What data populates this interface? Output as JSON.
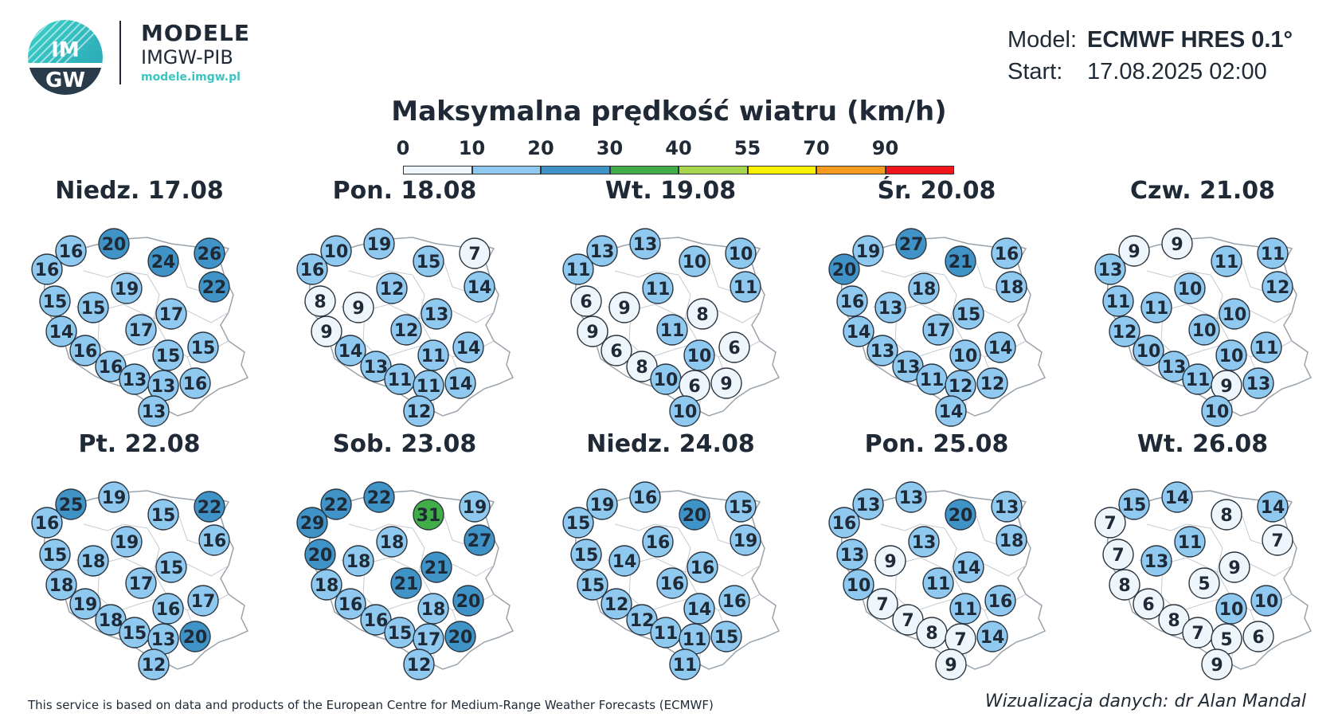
{
  "brand": {
    "logo_text_top": "IM",
    "logo_text_bottom": "GW",
    "title": "MODELE",
    "subtitle": "IMGW-PIB",
    "url": "modele.imgw.pl"
  },
  "model_info": {
    "model_label": "Model:",
    "model_value": "ECMWF HRES 0.1°",
    "start_label": "Start:",
    "start_value": "17.08.2025 02:00"
  },
  "title": "Maksymalna prędkość wiatru (km/h)",
  "legend": {
    "ticks": [
      "0",
      "10",
      "20",
      "30",
      "40",
      "55",
      "70",
      "90"
    ],
    "colors": [
      "#eef6fc",
      "#8fc9ef",
      "#3f93c6",
      "#41ad49",
      "#a7d64c",
      "#f9f101",
      "#f79c1e",
      "#f0161c"
    ]
  },
  "day_titles": [
    "Niedz. 17.08",
    "Pon. 18.08",
    "Wt. 19.08",
    "Śr. 20.08",
    "Czw. 21.08",
    "Pt. 22.08",
    "Sob. 23.08",
    "Niedz. 24.08",
    "Pon. 25.08",
    "Wt. 26.08"
  ],
  "map_values": [
    [
      16,
      20,
      24,
      26,
      16,
      22,
      19,
      15,
      15,
      17,
      14,
      17,
      15,
      16,
      15,
      16,
      13,
      13,
      16,
      13
    ],
    [
      10,
      19,
      15,
      7,
      16,
      14,
      12,
      8,
      9,
      13,
      9,
      12,
      14,
      14,
      11,
      13,
      11,
      11,
      14,
      12
    ],
    [
      13,
      13,
      10,
      10,
      11,
      11,
      11,
      6,
      9,
      8,
      9,
      11,
      6,
      6,
      10,
      8,
      10,
      6,
      9,
      10
    ],
    [
      19,
      27,
      21,
      16,
      20,
      18,
      18,
      16,
      13,
      15,
      14,
      17,
      14,
      13,
      10,
      13,
      11,
      12,
      12,
      14
    ],
    [
      9,
      9,
      11,
      11,
      13,
      12,
      10,
      11,
      11,
      10,
      12,
      10,
      11,
      10,
      10,
      13,
      11,
      9,
      13,
      10
    ],
    [
      25,
      19,
      15,
      22,
      16,
      16,
      19,
      15,
      18,
      15,
      18,
      17,
      17,
      19,
      16,
      18,
      15,
      13,
      20,
      12
    ],
    [
      22,
      22,
      31,
      19,
      29,
      27,
      18,
      20,
      18,
      21,
      18,
      21,
      20,
      16,
      18,
      16,
      15,
      17,
      20,
      12
    ],
    [
      19,
      16,
      20,
      15,
      15,
      19,
      16,
      15,
      14,
      16,
      15,
      16,
      16,
      12,
      14,
      12,
      11,
      11,
      15,
      11
    ],
    [
      13,
      13,
      20,
      13,
      16,
      18,
      13,
      13,
      9,
      14,
      10,
      11,
      16,
      7,
      11,
      7,
      8,
      7,
      14,
      9
    ],
    [
      15,
      14,
      8,
      14,
      7,
      7,
      11,
      7,
      13,
      9,
      8,
      5,
      10,
      6,
      10,
      8,
      7,
      5,
      6,
      9
    ]
  ],
  "footer": {
    "left": "This service is based on data and products of the European Centre for Medium-Range Weather Forecasts (ECMWF)",
    "right": "Wizualizacja danych: dr Alan Mandal"
  }
}
